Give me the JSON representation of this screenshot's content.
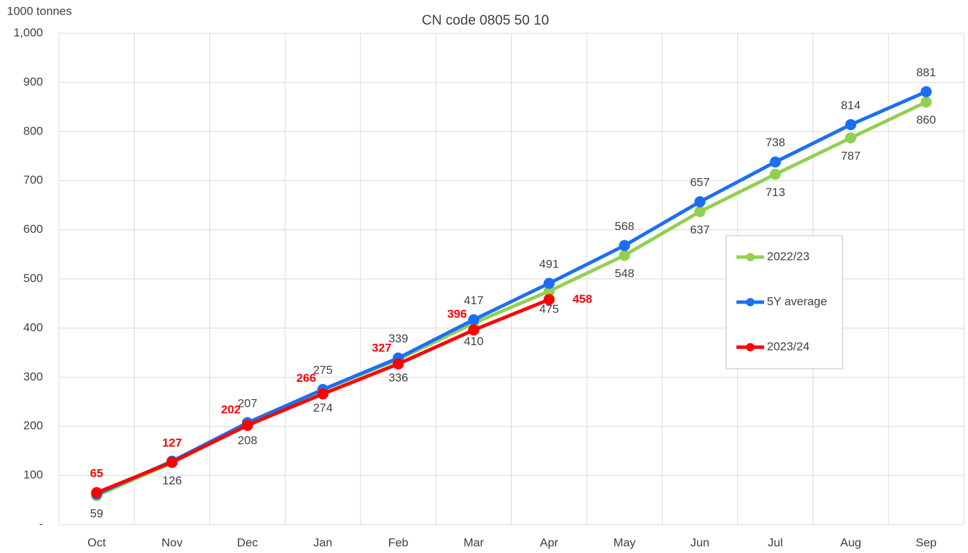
{
  "chart_data": {
    "type": "line",
    "subtitle": "CN code 0805 50 10",
    "y_axis_label": "1000 tonnes",
    "categories": [
      "Oct",
      "Nov",
      "Dec",
      "Jan",
      "Feb",
      "Mar",
      "Apr",
      "May",
      "Jun",
      "Jul",
      "Aug",
      "Sep"
    ],
    "series": [
      {
        "name": "2022/23",
        "color": "#92d050",
        "label_side": "below",
        "values": [
          59,
          126,
          208,
          274,
          336,
          410,
          475,
          548,
          637,
          713,
          787,
          860
        ]
      },
      {
        "name": "5Y average",
        "color": "#1c6ff2",
        "label_side": "above",
        "values": [
          62,
          129,
          207,
          275,
          339,
          417,
          491,
          568,
          657,
          738,
          814,
          881
        ],
        "value_labels": [
          null,
          null,
          "207",
          "275",
          "339",
          "417",
          "491",
          "568",
          "657",
          "738",
          "814",
          "881"
        ]
      },
      {
        "name": "2023/24",
        "color": "#ff0000",
        "label_side": "above",
        "values": [
          65,
          127,
          202,
          266,
          327,
          396,
          458,
          null,
          null,
          null,
          null,
          null
        ]
      }
    ],
    "ylim": [
      0,
      1000
    ],
    "yticks": [
      {
        "value": 0,
        "label": "-"
      },
      100,
      200,
      300,
      400,
      500,
      600,
      700,
      800,
      900,
      {
        "value": 1000,
        "label": "1,000"
      }
    ],
    "grid": true,
    "legend": "right"
  }
}
